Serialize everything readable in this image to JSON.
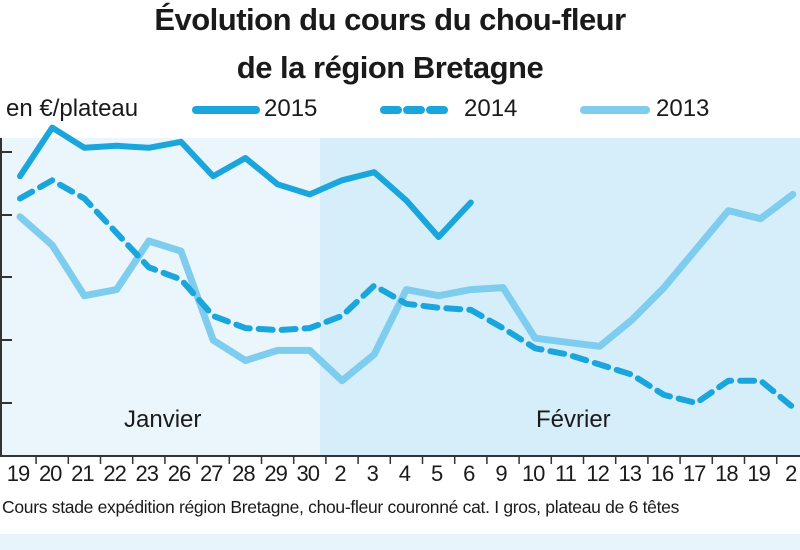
{
  "chart_data": {
    "type": "line",
    "title": "Évolution du cours du chou-fleur",
    "subtitle": "de la région Bretagne",
    "ylabel": "en €/plateau",
    "xlabel": "",
    "categories": [
      "19",
      "20",
      "21",
      "22",
      "23",
      "26",
      "27",
      "28",
      "29",
      "30",
      "2",
      "3",
      "4",
      "5",
      "6",
      "9",
      "10",
      "11",
      "12",
      "13",
      "16",
      "17",
      "18",
      "19",
      "2"
    ],
    "months": [
      {
        "label": "Janvier",
        "start_index": 0
      },
      {
        "label": "Février",
        "start_index": 10
      }
    ],
    "series": [
      {
        "name": "2015",
        "style": "solid-thick",
        "color": "#1aa6dc",
        "values": [
          5.6,
          6.8,
          6.3,
          6.35,
          6.3,
          6.45,
          5.6,
          6.05,
          5.4,
          5.15,
          5.5,
          5.7,
          5.0,
          4.1,
          4.95,
          null,
          null,
          null,
          null,
          null,
          null,
          null,
          null,
          null,
          null
        ]
      },
      {
        "name": "2014",
        "style": "dashed",
        "color": "#1aa6dc",
        "values": [
          5.05,
          5.5,
          5.05,
          4.2,
          3.35,
          3.05,
          2.15,
          1.85,
          1.8,
          1.85,
          2.15,
          2.9,
          2.45,
          2.35,
          2.3,
          1.85,
          1.35,
          1.2,
          0.95,
          0.7,
          0.2,
          0.0,
          0.55,
          0.55,
          -0.1
        ]
      },
      {
        "name": "2013",
        "style": "solid-light",
        "color": "#7fcdee",
        "values": [
          4.6,
          3.9,
          2.65,
          2.8,
          4.0,
          3.75,
          1.55,
          1.05,
          1.3,
          1.3,
          0.55,
          1.2,
          2.8,
          2.65,
          2.8,
          2.85,
          1.6,
          1.5,
          1.4,
          2.05,
          2.85,
          3.8,
          4.75,
          4.55,
          5.15
        ]
      }
    ]
  },
  "footnote": "Cours stade expédition région Bretagne, chou-fleur couronné cat. I gros, plateau de 6 têtes",
  "colors": {
    "series_2015": "#1aa6dc",
    "series_2014": "#1aa6dc",
    "series_2013": "#7fcdee",
    "background_january": "#eaf6fc",
    "background_february": "#d6eef9",
    "grid_ticks": "#1aa6dc"
  }
}
